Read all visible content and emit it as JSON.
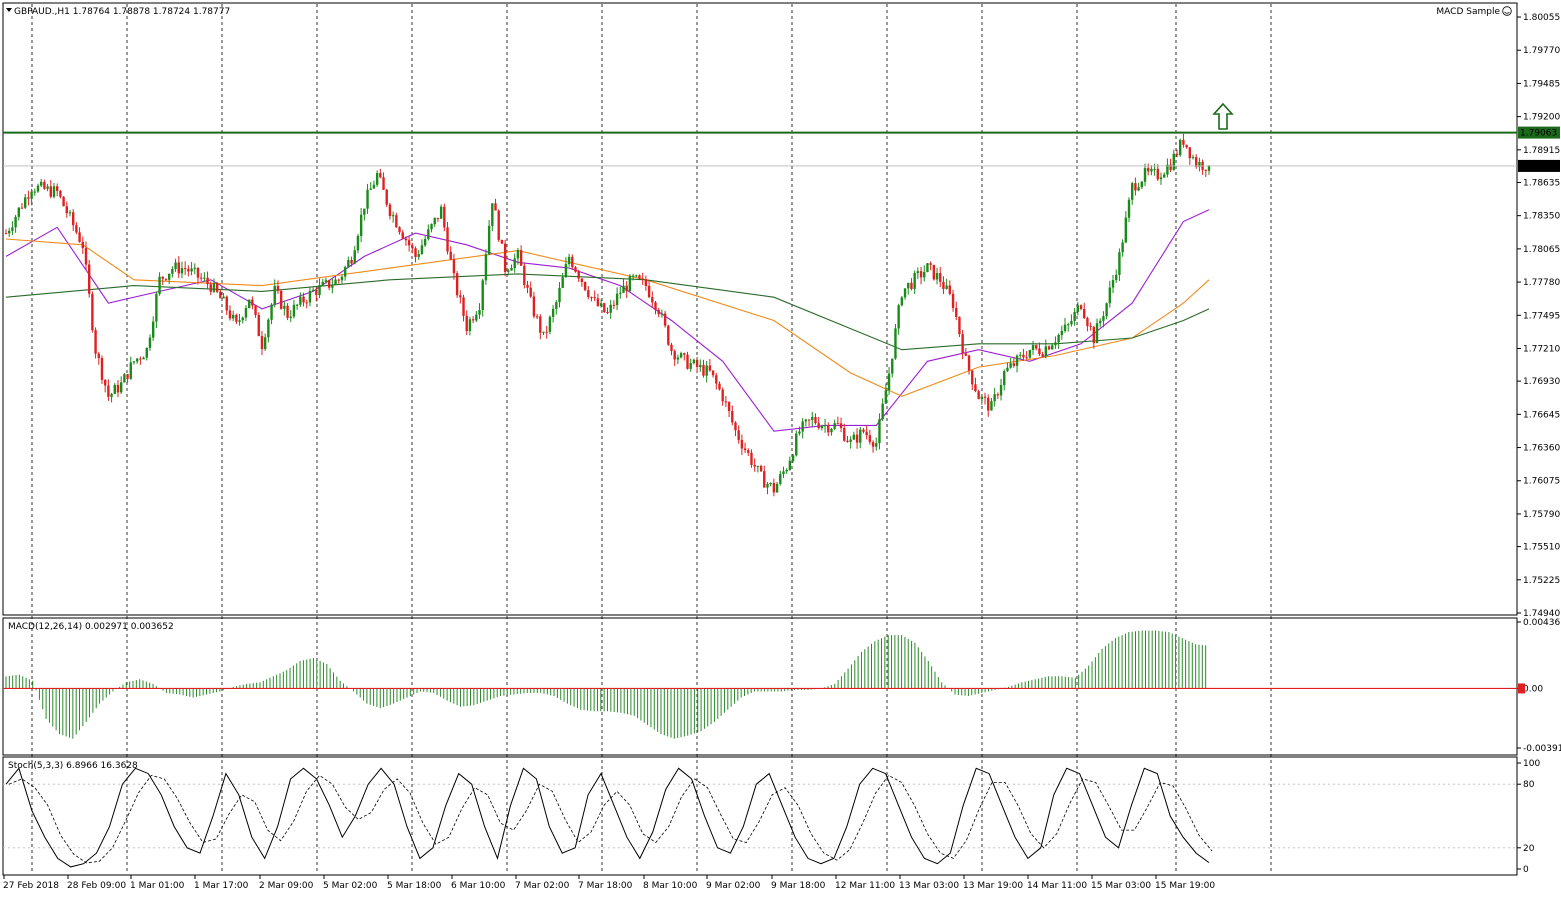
{
  "header": {
    "symbol_line": "GBPAUD.,H1  1.78764 1.78878 1.78724 1.78777",
    "expert_label": "MACD Sample",
    "expert_icon": "smiley-icon"
  },
  "main_axis": {
    "ticks": [
      "1.80055",
      "1.79770",
      "1.79485",
      "1.79200",
      "1.78915",
      "1.78635",
      "1.78350",
      "1.78065",
      "1.77780",
      "1.77495",
      "1.77210",
      "1.76930",
      "1.76645",
      "1.76360",
      "1.76075",
      "1.75790",
      "1.75510",
      "1.75225",
      "1.74940"
    ],
    "ymin": 1.7494,
    "ymax": 1.80055,
    "resistance_label": "1.79063",
    "current_label": "1.78777"
  },
  "macd": {
    "label": "MACD(12,26,14) 0.002971 0.003652",
    "ticks": [
      "0.004361",
      "0.00",
      "-0.003911"
    ]
  },
  "stoch": {
    "label": "Stoch(5,3,3) 6.8966 16.3628",
    "ticks": [
      "100",
      "80",
      "20",
      "0"
    ]
  },
  "time_axis": {
    "labels": [
      "27 Feb 2018",
      "28 Feb 09:00",
      "1 Mar 01:00",
      "1 Mar 17:00",
      "2 Mar 09:00",
      "5 Mar 02:00",
      "5 Mar 18:00",
      "6 Mar 10:00",
      "7 Mar 02:00",
      "7 Mar 18:00",
      "8 Mar 10:00",
      "9 Mar 02:00",
      "9 Mar 18:00",
      "12 Mar 11:00",
      "13 Mar 03:00",
      "13 Mar 19:00",
      "14 Mar 11:00",
      "15 Mar 03:00",
      "15 Mar 19:00"
    ]
  },
  "colors": {
    "bull": "#1a8a1a",
    "bear": "#e02020",
    "ma_fast": "#9b1fd6",
    "ma_mid": "#f08a1a",
    "ma_slow": "#2a6a2a",
    "resistance": "#1a6a1a",
    "macd_hist": "#2a8a2a",
    "macd_signal": "#e02020",
    "arrow": "#1a6a1a"
  },
  "chart_data": {
    "type": "candlestick",
    "title": "GBPAUD.,H1",
    "x_labels": [
      "27 Feb 2018",
      "28 Feb 09:00",
      "1 Mar 01:00",
      "1 Mar 17:00",
      "2 Mar 09:00",
      "5 Mar 02:00",
      "5 Mar 18:00",
      "6 Mar 10:00",
      "7 Mar 02:00",
      "7 Mar 18:00",
      "8 Mar 10:00",
      "9 Mar 02:00",
      "9 Mar 18:00",
      "12 Mar 11:00",
      "13 Mar 03:00",
      "13 Mar 19:00",
      "14 Mar 11:00",
      "15 Mar 03:00",
      "15 Mar 19:00"
    ],
    "close_path": [
      [
        0,
        1.782
      ],
      [
        2,
        1.786
      ],
      [
        4,
        1.7855
      ],
      [
        6,
        1.781
      ],
      [
        7,
        1.772
      ],
      [
        8,
        1.768
      ],
      [
        9,
        1.769
      ],
      [
        10,
        1.771
      ],
      [
        11,
        1.772
      ],
      [
        12,
        1.778
      ],
      [
        13,
        1.779
      ],
      [
        14,
        1.779
      ],
      [
        16,
        1.7775
      ],
      [
        17,
        1.776
      ],
      [
        18,
        1.774
      ],
      [
        19,
        1.7765
      ],
      [
        20,
        1.7725
      ],
      [
        21,
        1.777
      ],
      [
        22,
        1.775
      ],
      [
        23,
        1.776
      ],
      [
        24,
        1.777
      ],
      [
        25,
        1.7775
      ],
      [
        26,
        1.778
      ],
      [
        27,
        1.78
      ],
      [
        28,
        1.7845
      ],
      [
        29,
        1.787
      ],
      [
        30,
        1.784
      ],
      [
        31,
        1.782
      ],
      [
        32,
        1.78
      ],
      [
        33,
        1.782
      ],
      [
        34,
        1.784
      ],
      [
        35,
        1.778
      ],
      [
        36,
        1.774
      ],
      [
        37,
        1.776
      ],
      [
        38,
        1.785
      ],
      [
        39,
        1.779
      ],
      [
        40,
        1.78
      ],
      [
        41,
        1.776
      ],
      [
        42,
        1.773
      ],
      [
        43,
        1.776
      ],
      [
        44,
        1.78
      ],
      [
        45,
        1.778
      ],
      [
        46,
        1.776
      ],
      [
        47,
        1.775
      ],
      [
        48,
        1.777
      ],
      [
        49,
        1.778
      ],
      [
        50,
        1.7775
      ],
      [
        51,
        1.7755
      ],
      [
        52,
        1.772
      ],
      [
        53,
        1.771
      ],
      [
        54,
        1.7705
      ],
      [
        55,
        1.77
      ],
      [
        56,
        1.768
      ],
      [
        57,
        1.765
      ],
      [
        58,
        1.763
      ],
      [
        59,
        1.761
      ],
      [
        60,
        1.76
      ],
      [
        61,
        1.762
      ],
      [
        62,
        1.765
      ],
      [
        63,
        1.766
      ],
      [
        64,
        1.7655
      ],
      [
        65,
        1.7655
      ],
      [
        66,
        1.764
      ],
      [
        67,
        1.765
      ],
      [
        68,
        1.764
      ],
      [
        69,
        1.77
      ],
      [
        70,
        1.777
      ],
      [
        71,
        1.778
      ],
      [
        72,
        1.779
      ],
      [
        73,
        1.778
      ],
      [
        74,
        1.776
      ],
      [
        75,
        1.771
      ],
      [
        76,
        1.768
      ],
      [
        77,
        1.767
      ],
      [
        78,
        1.77
      ],
      [
        79,
        1.771
      ],
      [
        80,
        1.772
      ],
      [
        81,
        1.772
      ],
      [
        82,
        1.773
      ],
      [
        83,
        1.774
      ],
      [
        84,
        1.776
      ],
      [
        85,
        1.773
      ],
      [
        86,
        1.776
      ],
      [
        87,
        1.78
      ],
      [
        88,
        1.786
      ],
      [
        89,
        1.787
      ],
      [
        90,
        1.787
      ],
      [
        91,
        1.788
      ],
      [
        92,
        1.79
      ],
      [
        93,
        1.788
      ],
      [
        94,
        1.7878
      ]
    ],
    "resistance": 1.79063,
    "last_price": 1.78777,
    "moving_averages": [
      {
        "name": "fast",
        "values": [
          [
            0,
            1.78
          ],
          [
            4,
            1.7825
          ],
          [
            8,
            1.776
          ],
          [
            12,
            1.777
          ],
          [
            16,
            1.778
          ],
          [
            20,
            1.7755
          ],
          [
            24,
            1.777
          ],
          [
            28,
            1.78
          ],
          [
            32,
            1.782
          ],
          [
            36,
            1.781
          ],
          [
            40,
            1.7795
          ],
          [
            44,
            1.779
          ],
          [
            48,
            1.7775
          ],
          [
            52,
            1.7745
          ],
          [
            56,
            1.771
          ],
          [
            60,
            1.765
          ],
          [
            64,
            1.7655
          ],
          [
            68,
            1.7655
          ],
          [
            72,
            1.771
          ],
          [
            76,
            1.772
          ],
          [
            80,
            1.771
          ],
          [
            84,
            1.7725
          ],
          [
            88,
            1.776
          ],
          [
            92,
            1.783
          ],
          [
            94,
            1.784
          ]
        ]
      },
      {
        "name": "mid",
        "values": [
          [
            0,
            1.7815
          ],
          [
            6,
            1.781
          ],
          [
            10,
            1.778
          ],
          [
            20,
            1.7775
          ],
          [
            30,
            1.779
          ],
          [
            40,
            1.7805
          ],
          [
            50,
            1.778
          ],
          [
            60,
            1.7745
          ],
          [
            66,
            1.77
          ],
          [
            70,
            1.768
          ],
          [
            76,
            1.7705
          ],
          [
            82,
            1.7715
          ],
          [
            88,
            1.773
          ],
          [
            92,
            1.776
          ],
          [
            94,
            1.778
          ]
        ]
      },
      {
        "name": "slow",
        "values": [
          [
            0,
            1.7765
          ],
          [
            10,
            1.7775
          ],
          [
            20,
            1.777
          ],
          [
            30,
            1.778
          ],
          [
            40,
            1.7785
          ],
          [
            50,
            1.778
          ],
          [
            60,
            1.7765
          ],
          [
            70,
            1.772
          ],
          [
            76,
            1.7725
          ],
          [
            82,
            1.7725
          ],
          [
            88,
            1.773
          ],
          [
            92,
            1.7745
          ],
          [
            94,
            1.7755
          ]
        ]
      }
    ],
    "macd_hist": [
      0.0008,
      0.0009,
      0.0005,
      -0.002,
      -0.003,
      -0.0033,
      -0.0022,
      -0.001,
      -0.0002,
      0.0004,
      0.0006,
      0.0003,
      -0.0003,
      -0.0004,
      -0.0006,
      -0.0004,
      -0.0002,
      0.0001,
      0.0003,
      0.0004,
      0.0008,
      0.0012,
      0.0018,
      0.002,
      0.0016,
      0.0005,
      -0.0002,
      -0.001,
      -0.0013,
      -0.001,
      -0.0006,
      -0.0002,
      -0.0003,
      -0.0008,
      -0.0012,
      -0.0011,
      -0.0008,
      -0.0005,
      -0.0004,
      -0.0003,
      -0.0003,
      -0.0005,
      -0.001,
      -0.0014,
      -0.0015,
      -0.0015,
      -0.0016,
      -0.0018,
      -0.0024,
      -0.003,
      -0.0033,
      -0.0031,
      -0.0028,
      -0.0022,
      -0.0014,
      -0.0006,
      -0.0002,
      -0.0002,
      -0.0002,
      -0.0001,
      -0.0001,
      0.0,
      0.0003,
      0.0013,
      0.0024,
      0.0031,
      0.0035,
      0.0035,
      0.003,
      0.0018,
      0.0004,
      -0.0004,
      -0.0005,
      -0.0003,
      -0.0001,
      0.0001,
      0.0004,
      0.0006,
      0.0008,
      0.0008,
      0.0007,
      0.0015,
      0.0026,
      0.0033,
      0.0037,
      0.0038,
      0.0038,
      0.0037,
      0.0033,
      0.0029,
      0.0028
    ],
    "stoch": [
      80,
      95,
      55,
      30,
      10,
      2,
      5,
      15,
      40,
      80,
      95,
      90,
      70,
      40,
      20,
      15,
      50,
      90,
      70,
      30,
      10,
      40,
      85,
      95,
      85,
      60,
      30,
      50,
      80,
      95,
      80,
      40,
      10,
      20,
      60,
      90,
      80,
      40,
      10,
      60,
      95,
      85,
      40,
      15,
      20,
      70,
      90,
      60,
      30,
      10,
      35,
      75,
      95,
      85,
      50,
      20,
      15,
      40,
      80,
      90,
      60,
      30,
      10,
      5,
      10,
      40,
      80,
      95,
      90,
      60,
      30,
      10,
      5,
      15,
      60,
      95,
      90,
      60,
      30,
      10,
      20,
      70,
      95,
      90,
      60,
      30,
      20,
      60,
      95,
      90,
      50,
      30,
      15,
      6
    ]
  }
}
